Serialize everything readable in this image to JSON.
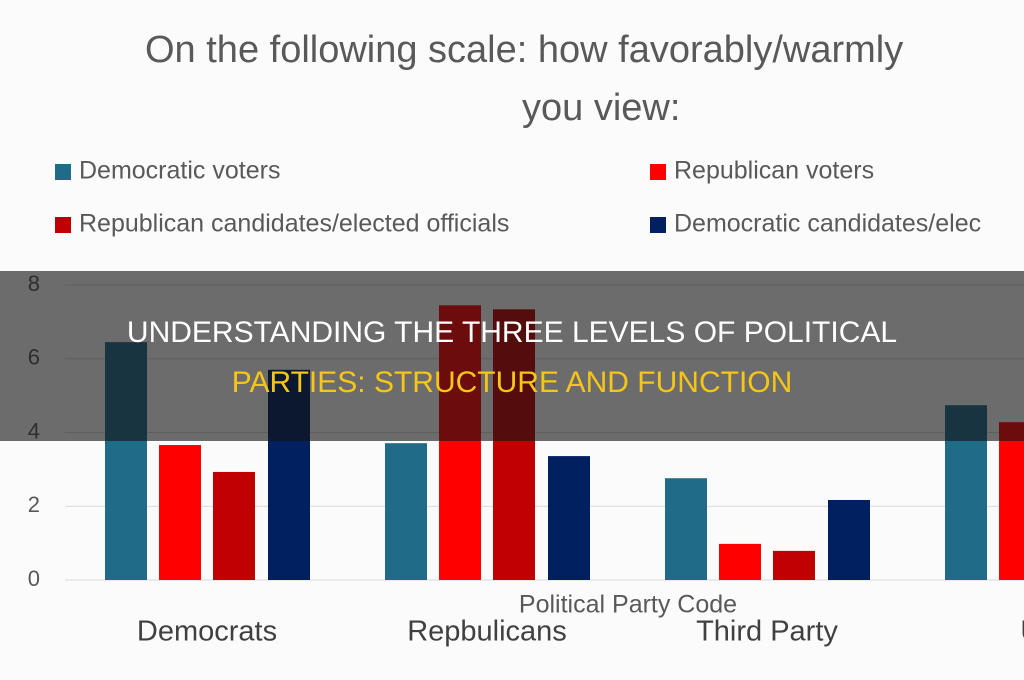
{
  "chart_data": {
    "type": "bar",
    "title_lines": [
      "On the following scale: how favorably/warmly",
      "you view:"
    ],
    "x_label": "Political Party Code",
    "categories": [
      "Democrats",
      "Repbulicans",
      "Third Party",
      "Una"
    ],
    "series": [
      {
        "name": "Democratic voters",
        "color": "#1f6b88",
        "values": [
          6.45,
          3.71,
          2.76,
          4.74
        ]
      },
      {
        "name": "Republican voters",
        "color": "#ff0000",
        "values": [
          3.66,
          7.45,
          0.98,
          4.28
        ]
      },
      {
        "name": "Republican candidates/elected officials",
        "color": "#c00000",
        "values": [
          2.93,
          7.34,
          0.79,
          null
        ]
      },
      {
        "name": "Democratic candidates/elec",
        "color": "#002060",
        "values": [
          5.7,
          3.36,
          2.17,
          null
        ]
      }
    ],
    "ylim": [
      0,
      8
    ],
    "yticks": [
      0,
      2,
      4,
      6,
      8
    ],
    "grid": true
  },
  "overlay": {
    "lines": [
      "UNDERSTANDING THE THREE LEVELS OF POLITICAL",
      "PARTIES: STRUCTURE AND FUNCTION"
    ]
  }
}
